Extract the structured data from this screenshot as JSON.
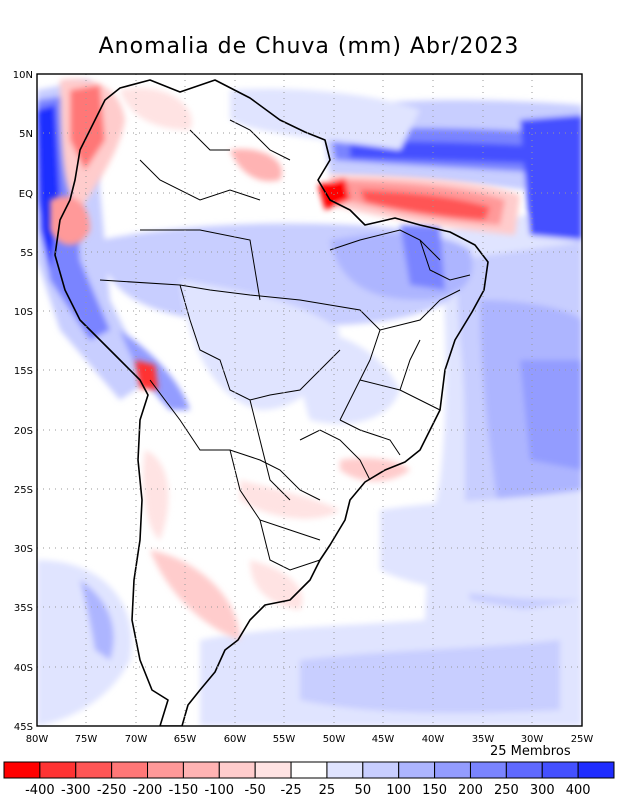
{
  "title": "Anomalia de Chuva (mm) Abr/2023",
  "members_label": "25 Membros",
  "lat_labels": [
    "10N",
    "5N",
    "EQ",
    "5S",
    "10S",
    "15S",
    "20S",
    "25S",
    "30S",
    "35S",
    "40S",
    "45S"
  ],
  "lon_labels": [
    "80W",
    "75W",
    "70W",
    "65W",
    "60W",
    "55W",
    "50W",
    "45W",
    "40W",
    "35W",
    "30W",
    "25W"
  ],
  "colorbar": {
    "bins": [
      {
        "color": "#ff0000"
      },
      {
        "color": "#ff3333"
      },
      {
        "color": "#ff5555"
      },
      {
        "color": "#ff7777"
      },
      {
        "color": "#ff9999"
      },
      {
        "color": "#ffb3b3"
      },
      {
        "color": "#ffcccc"
      },
      {
        "color": "#ffe3e3"
      },
      {
        "color": "#ffffff"
      },
      {
        "color": "#e0e4ff"
      },
      {
        "color": "#c8ceff"
      },
      {
        "color": "#adb5ff"
      },
      {
        "color": "#939cff"
      },
      {
        "color": "#7a84ff"
      },
      {
        "color": "#5f69ff"
      },
      {
        "color": "#4450ff"
      },
      {
        "color": "#1f2dff"
      }
    ],
    "tick_labels": [
      "-400",
      "-300",
      "-250",
      "-200",
      "-150",
      "-100",
      "-50",
      "-25",
      "25",
      "50",
      "100",
      "150",
      "200",
      "250",
      "300",
      "400"
    ]
  }
}
